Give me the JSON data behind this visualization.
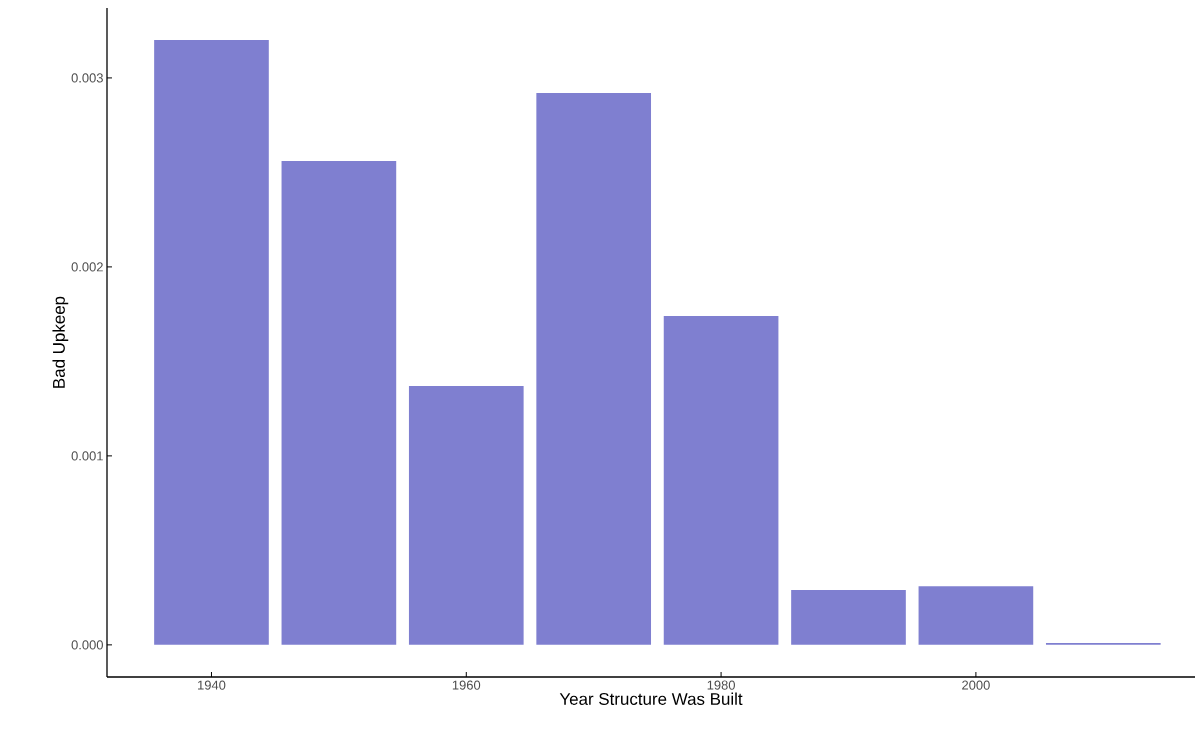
{
  "chart_data": {
    "type": "bar",
    "xlabel": "Year Structure Was Built",
    "ylabel": "Bad Upkeep",
    "x": [
      1940,
      1950,
      1960,
      1970,
      1980,
      1990,
      2000,
      2010
    ],
    "values": [
      0.0032,
      0.00256,
      0.00137,
      0.00292,
      0.00174,
      0.00029,
      0.00031,
      1e-05
    ],
    "color": "#7f7fd0",
    "xlim": [
      1931.8,
      2017.2
    ],
    "ylim": [
      -0.00017,
      0.00337
    ],
    "xticks": [
      1940,
      1960,
      1980,
      2000
    ],
    "yticks": [
      {
        "value": 0,
        "label": "0.000"
      },
      {
        "value": 0.001,
        "label": "0.001"
      },
      {
        "value": 0.002,
        "label": "0.002"
      },
      {
        "value": 0.003,
        "label": "0.003"
      }
    ]
  }
}
